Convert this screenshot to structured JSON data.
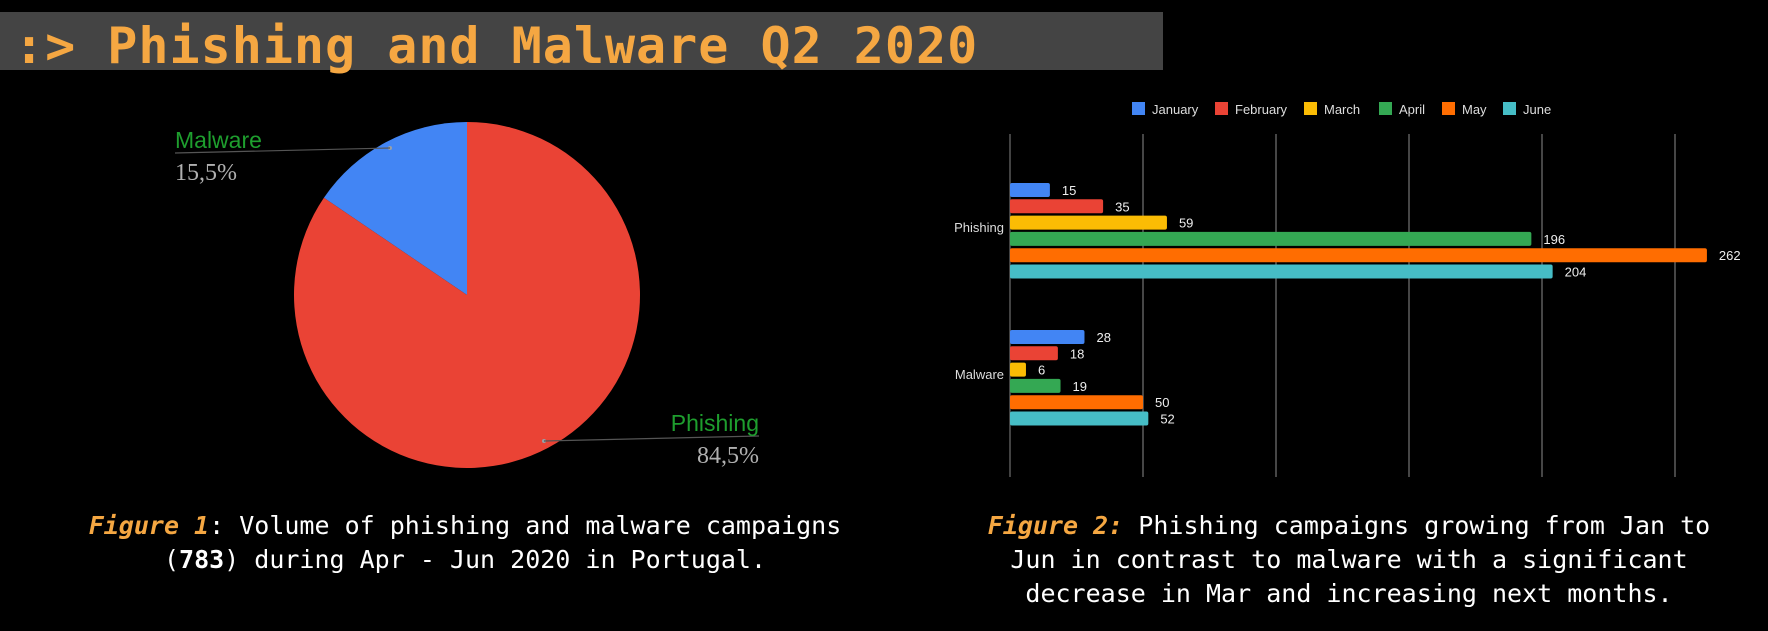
{
  "header": {
    "title": ":> Phishing and Malware Q2 2020"
  },
  "colors": {
    "title": "#F5A742",
    "january": "#4285F4",
    "february": "#EA4335",
    "march": "#FBBC04",
    "april": "#34A853",
    "may": "#FF6D01",
    "june": "#46BDC6",
    "pie_label": "#1E9E2E",
    "pie_value": "#B0B0B0"
  },
  "chart_data": [
    {
      "type": "pie",
      "title": "",
      "slices": [
        {
          "label": "Malware",
          "value": 15.5,
          "display": "15,5%",
          "color": "#4285F4"
        },
        {
          "label": "Phishing",
          "value": 84.5,
          "display": "84,5%",
          "color": "#EA4335"
        }
      ],
      "start_angle": "12 o'clock",
      "legend": "none (leader-line labels)"
    },
    {
      "type": "bar",
      "orientation": "horizontal",
      "title": "",
      "categories": [
        "Phishing",
        "Malware"
      ],
      "series": [
        {
          "name": "January",
          "values": [
            15,
            28
          ],
          "color": "#4285F4"
        },
        {
          "name": "February",
          "values": [
            35,
            18
          ],
          "color": "#EA4335"
        },
        {
          "name": "March",
          "values": [
            59,
            6
          ],
          "color": "#FBBC04"
        },
        {
          "name": "April",
          "values": [
            196,
            19
          ],
          "color": "#34A853"
        },
        {
          "name": "May",
          "values": [
            262,
            50
          ],
          "color": "#FF6D01"
        },
        {
          "name": "June",
          "values": [
            204,
            52
          ],
          "color": "#46BDC6"
        }
      ],
      "xlabel": "",
      "ylabel": "",
      "xlim": [
        0,
        270
      ],
      "gridlines": [
        0,
        50,
        100,
        150,
        200,
        250
      ],
      "grid": true,
      "data_labels": true,
      "legend": "top-center"
    }
  ],
  "captions": {
    "figure1": {
      "label": "Figure 1",
      "text_a": ": Volume of phishing and malware campaigns",
      "text_b_open": "(",
      "bold": "783",
      "text_b_close": ") during Apr - Jun 2020 in Portugal."
    },
    "figure2": {
      "label": "Figure 2:",
      "line1": " Phishing campaigns growing from Jan to",
      "line2": "Jun in contrast to malware with a significant",
      "line3": "decrease in Mar and increasing next months."
    }
  }
}
